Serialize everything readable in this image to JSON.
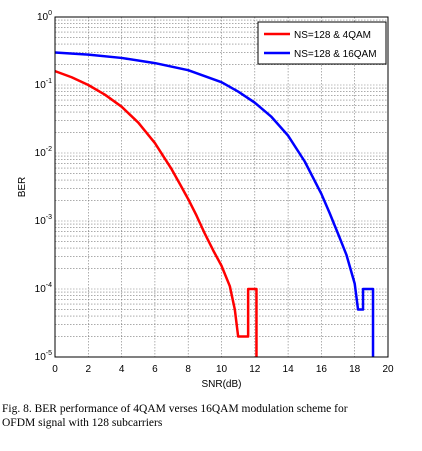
{
  "chart_data": {
    "type": "line",
    "xlabel": "SNR(dB)",
    "ylabel": "BER",
    "x_ticks": [
      "0",
      "2",
      "4",
      "6",
      "8",
      "10",
      "12",
      "14",
      "16",
      "18",
      "20"
    ],
    "y_ticks": [
      {
        "base": "10",
        "exp": "0"
      },
      {
        "base": "10",
        "exp": "-1"
      },
      {
        "base": "10",
        "exp": "-2"
      },
      {
        "base": "10",
        "exp": "-3"
      },
      {
        "base": "10",
        "exp": "-4"
      },
      {
        "base": "10",
        "exp": "-5"
      }
    ],
    "xlim": [
      0,
      20
    ],
    "ylim": [
      1e-05,
      1
    ],
    "yscale": "log",
    "grid": true,
    "legend_position": "top-right",
    "series": [
      {
        "name": "NS=128 & 4QAM",
        "color": "#ff0000",
        "points": [
          [
            0,
            0.16
          ],
          [
            1,
            0.13
          ],
          [
            2,
            0.1
          ],
          [
            3,
            0.072
          ],
          [
            4,
            0.048
          ],
          [
            5,
            0.028
          ],
          [
            6,
            0.014
          ],
          [
            7,
            0.0058
          ],
          [
            7.5,
            0.0035
          ],
          [
            8,
            0.0021
          ],
          [
            8.5,
            0.0012
          ],
          [
            9,
            0.00065
          ],
          [
            9.5,
            0.00037
          ],
          [
            10,
            0.00022
          ],
          [
            10.5,
            0.00011
          ],
          [
            10.8,
            5e-05
          ],
          [
            11,
            2e-05
          ],
          [
            11.6,
            2e-05
          ],
          [
            11.6,
            0.0001
          ],
          [
            12.1,
            0.0001
          ],
          [
            12.1,
            1e-05
          ]
        ]
      },
      {
        "name": "NS=128 & 16QAM",
        "color": "#0000ff",
        "points": [
          [
            0,
            0.3
          ],
          [
            2,
            0.28
          ],
          [
            4,
            0.25
          ],
          [
            6,
            0.21
          ],
          [
            8,
            0.165
          ],
          [
            10,
            0.11
          ],
          [
            11,
            0.08
          ],
          [
            12,
            0.055
          ],
          [
            13,
            0.034
          ],
          [
            14,
            0.018
          ],
          [
            15,
            0.0075
          ],
          [
            16,
            0.0025
          ],
          [
            16.5,
            0.0013
          ],
          [
            17,
            0.00065
          ],
          [
            17.5,
            0.00032
          ],
          [
            18,
            0.00012
          ],
          [
            18.2,
            5e-05
          ],
          [
            18.5,
            5e-05
          ],
          [
            18.5,
            0.0001
          ],
          [
            19.1,
            0.0001
          ],
          [
            19.1,
            1e-05
          ]
        ]
      }
    ]
  },
  "caption": {
    "line1": "Fig. 8. BER performance of 4QAM verses 16QAM modulation scheme for",
    "line2": "OFDM signal with 128 subcarriers"
  }
}
